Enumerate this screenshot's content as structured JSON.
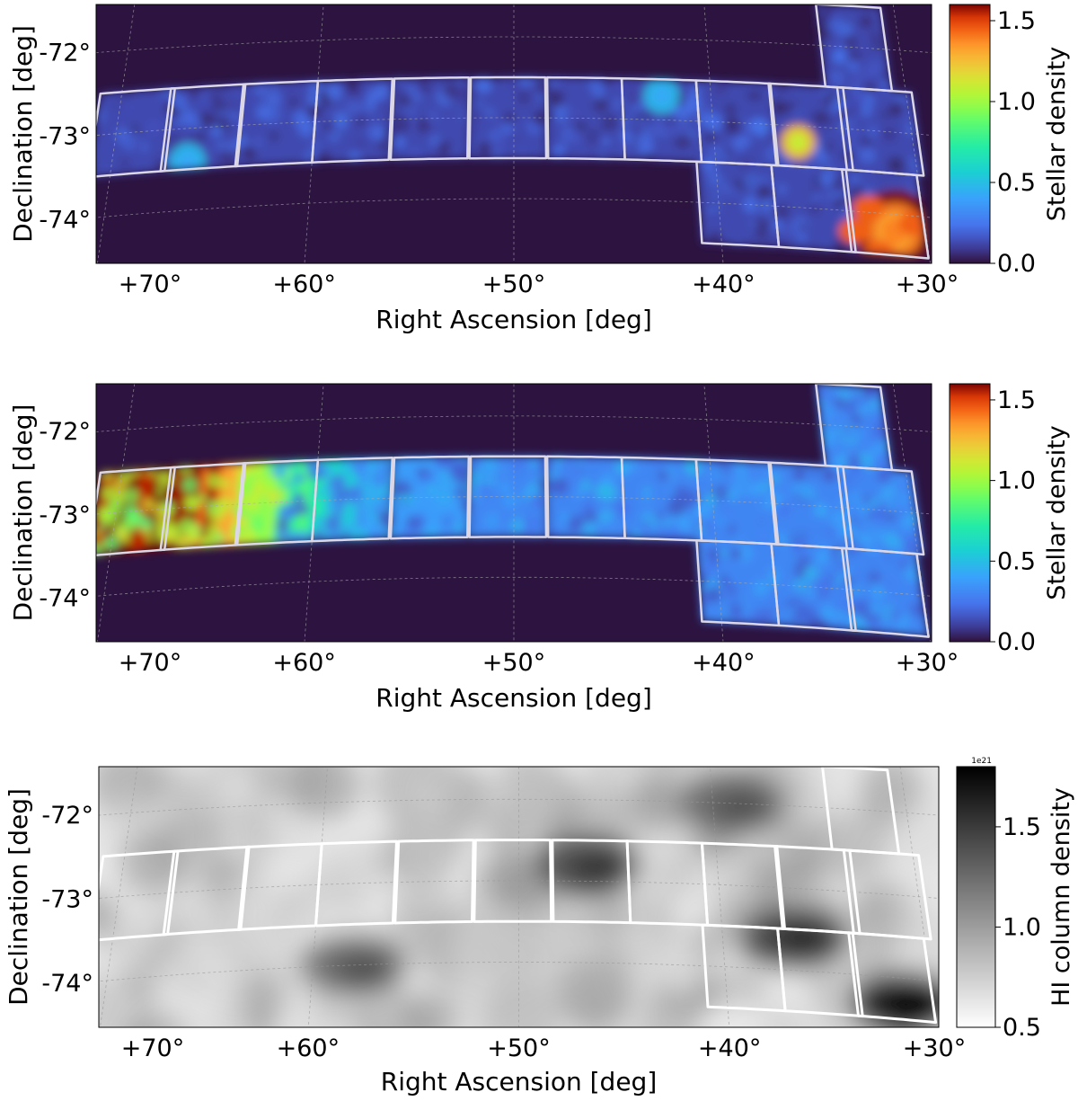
{
  "chart_data": [
    {
      "type": "heatmap",
      "xlabel": "Right Ascension [deg]",
      "ylabel": "Declination [deg]",
      "x_ticks": [
        "+70°",
        "+60°",
        "+50°",
        "+40°",
        "+30°"
      ],
      "y_ticks": [
        "-72°",
        "-73°",
        "-74°"
      ],
      "xlim": [
        71.5,
        29.5
      ],
      "ylim": [
        -74.8,
        -71.6
      ],
      "colorbar": {
        "label": "Stellar density",
        "range": [
          0.0,
          1.6
        ],
        "ticks": [
          "0.0",
          "0.5",
          "1.0",
          "1.5"
        ],
        "colormap": "turbo"
      },
      "background_color": "#2c1340",
      "grid": true,
      "tiles": "strip of 11 fields along Dec ≈ -73° plus 3 fields along Dec ≈ -74° and 1 field at Dec ≈ -72°",
      "features": [
        {
          "ra": 31.5,
          "dec": -74.2,
          "level": 1.6,
          "desc": "high-density clump"
        },
        {
          "ra": 35.8,
          "dec": -73.2,
          "level": 1.3
        },
        {
          "ra": 66.2,
          "dec": -73.4,
          "level": 0.5
        },
        {
          "ra": 42.5,
          "dec": -72.7,
          "level": 0.5
        }
      ]
    },
    {
      "type": "heatmap",
      "xlabel": "Right Ascension [deg]",
      "ylabel": "Declination [deg]",
      "x_ticks": [
        "+70°",
        "+60°",
        "+50°",
        "+40°",
        "+30°"
      ],
      "y_ticks": [
        "-72°",
        "-73°",
        "-74°"
      ],
      "xlim": [
        71.5,
        29.5
      ],
      "ylim": [
        -74.8,
        -71.6
      ],
      "colorbar": {
        "label": "Stellar density",
        "range": [
          0.0,
          1.6
        ],
        "ticks": [
          "0.0",
          "0.5",
          "1.0",
          "1.5"
        ],
        "colormap": "turbo"
      },
      "background_color": "#2c1340",
      "grid": true,
      "gradient": [
        {
          "ra": 70,
          "level": 1.6
        },
        {
          "ra": 66,
          "level": 1.6
        },
        {
          "ra": 62,
          "level": 0.9
        },
        {
          "ra": 58,
          "level": 0.45
        },
        {
          "ra": 50,
          "level": 0.3
        },
        {
          "ra": 40,
          "level": 0.3
        },
        {
          "ra": 30,
          "level": 0.3
        }
      ]
    },
    {
      "type": "heatmap",
      "xlabel": "Right Ascension [deg]",
      "ylabel": "Declination [deg]",
      "x_ticks": [
        "+70°",
        "+60°",
        "+50°",
        "+40°",
        "+30°"
      ],
      "y_ticks": [
        "-72°",
        "-73°",
        "-74°"
      ],
      "xlim": [
        71.5,
        29.5
      ],
      "ylim": [
        -74.8,
        -71.6
      ],
      "colorbar": {
        "label": "HI column density",
        "range": [
          0.5,
          1.8
        ],
        "ticks": [
          "0.5",
          "1.0",
          "1.5"
        ],
        "exponent": "1e21",
        "colormap": "gray_r"
      },
      "grid": true,
      "dark_regions": [
        {
          "ra": 31.5,
          "dec": -74.3,
          "level": 1.75
        },
        {
          "ra": 36.5,
          "dec": -73.6,
          "level": 1.5
        },
        {
          "ra": 46.5,
          "dec": -72.8,
          "level": 1.45
        },
        {
          "ra": 39,
          "dec": -72.0,
          "level": 1.3
        },
        {
          "ra": 58,
          "dec": -74.0,
          "level": 1.3
        }
      ]
    }
  ]
}
